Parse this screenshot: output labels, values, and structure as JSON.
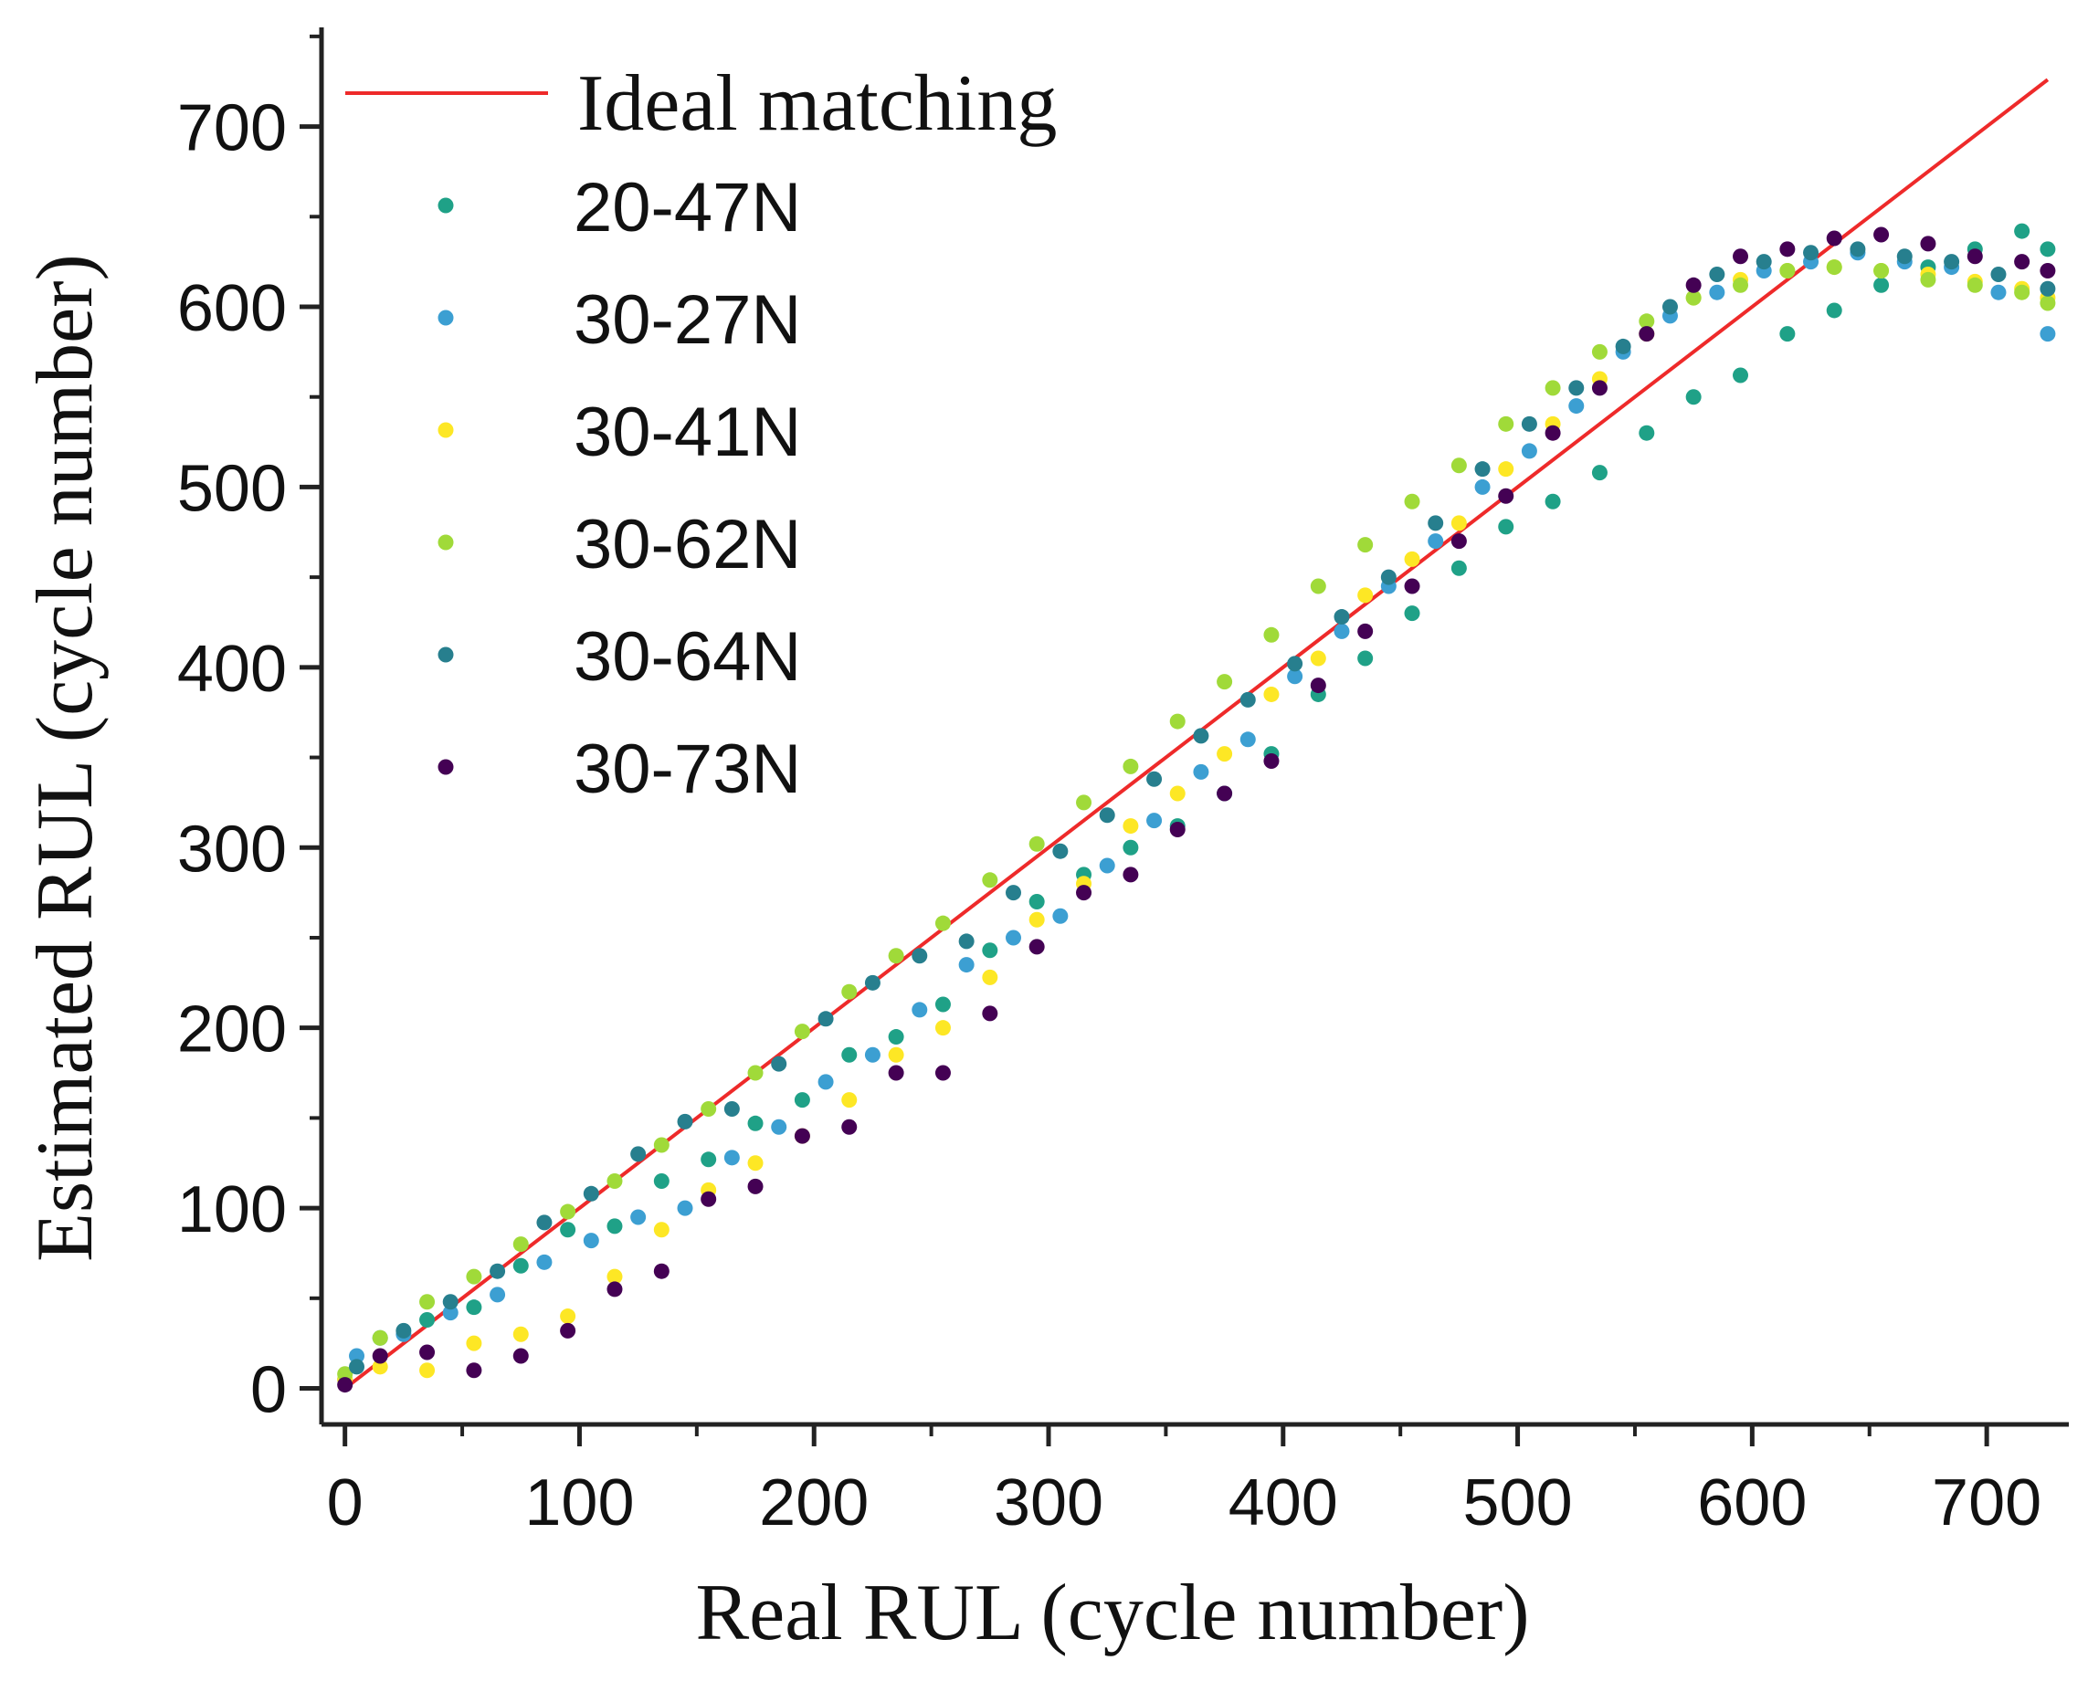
{
  "chart_data": {
    "type": "scatter",
    "title": "",
    "xlabel": "Real RUL (cycle number)",
    "ylabel": "Estimated RUL (cycle number)",
    "xlim": [
      -10,
      735
    ],
    "ylim": [
      -20,
      755
    ],
    "xticks": [
      0,
      100,
      200,
      300,
      400,
      500,
      600,
      700
    ],
    "yticks": [
      0,
      100,
      200,
      300,
      400,
      500,
      600,
      700
    ],
    "xtick_labels": [
      "0",
      "100",
      "200",
      "300",
      "400",
      "500",
      "600",
      "700"
    ],
    "ytick_labels": [
      "0",
      "100",
      "200",
      "300",
      "400",
      "500",
      "600",
      "700"
    ],
    "legend_position": "top-left",
    "ideal_line": {
      "name": "Ideal matching",
      "color": "#ee2a2a",
      "x": [
        0,
        726
      ],
      "y": [
        0,
        726
      ]
    },
    "series": [
      {
        "name": "20-47N",
        "color": "#1fa187",
        "x": [
          0,
          15,
          35,
          55,
          75,
          95,
          115,
          135,
          155,
          175,
          195,
          215,
          235,
          255,
          275,
          295,
          315,
          335,
          355,
          375,
          395,
          415,
          435,
          455,
          475,
          495,
          515,
          535,
          555,
          575,
          595,
          615,
          635,
          655,
          675,
          695,
          715,
          726
        ],
        "y": [
          5,
          28,
          38,
          45,
          68,
          88,
          90,
          115,
          127,
          147,
          160,
          185,
          195,
          213,
          243,
          270,
          285,
          300,
          312,
          330,
          352,
          385,
          405,
          430,
          455,
          478,
          492,
          508,
          530,
          550,
          562,
          585,
          598,
          612,
          622,
          632,
          642,
          632
        ]
      },
      {
        "name": "30-27N",
        "color": "#3c9fd2",
        "x": [
          5,
          25,
          45,
          65,
          85,
          105,
          125,
          145,
          165,
          185,
          205,
          225,
          245,
          265,
          285,
          305,
          325,
          345,
          365,
          385,
          405,
          425,
          445,
          465,
          485,
          505,
          525,
          545,
          565,
          585,
          605,
          625,
          645,
          665,
          685,
          705,
          726
        ],
        "y": [
          18,
          30,
          42,
          52,
          70,
          82,
          95,
          100,
          128,
          145,
          170,
          185,
          210,
          235,
          250,
          262,
          290,
          315,
          342,
          360,
          395,
          420,
          445,
          470,
          500,
          520,
          545,
          575,
          595,
          608,
          620,
          625,
          630,
          625,
          622,
          608,
          585
        ]
      },
      {
        "name": "30-41N",
        "color": "#fde725",
        "x": [
          0,
          15,
          35,
          55,
          75,
          95,
          115,
          135,
          155,
          175,
          195,
          215,
          235,
          255,
          275,
          295,
          315,
          335,
          355,
          375,
          395,
          415,
          435,
          455,
          475,
          495,
          515,
          535,
          555,
          575,
          595,
          615,
          635,
          655,
          675,
          695,
          715,
          726
        ],
        "y": [
          5,
          12,
          10,
          25,
          30,
          40,
          62,
          88,
          110,
          125,
          140,
          160,
          185,
          200,
          228,
          260,
          280,
          312,
          330,
          352,
          385,
          405,
          440,
          460,
          480,
          510,
          535,
          560,
          585,
          605,
          615,
          620,
          622,
          620,
          618,
          614,
          610,
          605
        ]
      },
      {
        "name": "30-62N",
        "color": "#a0da39",
        "x": [
          0,
          15,
          35,
          55,
          75,
          95,
          115,
          135,
          155,
          175,
          195,
          215,
          235,
          255,
          275,
          295,
          315,
          335,
          355,
          375,
          395,
          415,
          435,
          455,
          475,
          495,
          515,
          535,
          555,
          575,
          595,
          615,
          635,
          655,
          675,
          695,
          715,
          726
        ],
        "y": [
          8,
          28,
          48,
          62,
          80,
          98,
          115,
          135,
          155,
          175,
          198,
          220,
          240,
          258,
          282,
          302,
          325,
          345,
          370,
          392,
          418,
          445,
          468,
          492,
          512,
          535,
          555,
          575,
          592,
          605,
          612,
          620,
          622,
          620,
          615,
          612,
          608,
          602
        ]
      },
      {
        "name": "30-64N",
        "color": "#277f8e",
        "x": [
          5,
          25,
          45,
          65,
          85,
          105,
          125,
          145,
          165,
          185,
          205,
          225,
          245,
          265,
          285,
          305,
          325,
          345,
          365,
          385,
          405,
          425,
          445,
          465,
          485,
          505,
          525,
          545,
          565,
          585,
          605,
          625,
          645,
          665,
          685,
          705,
          726
        ],
        "y": [
          12,
          32,
          48,
          65,
          92,
          108,
          130,
          148,
          155,
          180,
          205,
          225,
          240,
          248,
          275,
          298,
          318,
          338,
          362,
          382,
          402,
          428,
          450,
          480,
          510,
          535,
          555,
          578,
          600,
          618,
          625,
          630,
          632,
          628,
          625,
          618,
          610
        ]
      },
      {
        "name": "30-73N",
        "color": "#440154",
        "x": [
          0,
          15,
          35,
          55,
          75,
          95,
          115,
          135,
          155,
          175,
          195,
          215,
          235,
          255,
          275,
          295,
          315,
          335,
          355,
          375,
          395,
          415,
          435,
          455,
          475,
          495,
          515,
          535,
          555,
          575,
          595,
          615,
          635,
          655,
          675,
          695,
          715,
          726
        ],
        "y": [
          2,
          18,
          20,
          10,
          18,
          32,
          55,
          65,
          105,
          112,
          140,
          145,
          175,
          175,
          208,
          245,
          275,
          285,
          310,
          330,
          348,
          390,
          420,
          445,
          470,
          495,
          530,
          555,
          585,
          612,
          628,
          632,
          638,
          640,
          635,
          628,
          625,
          620
        ]
      }
    ]
  }
}
